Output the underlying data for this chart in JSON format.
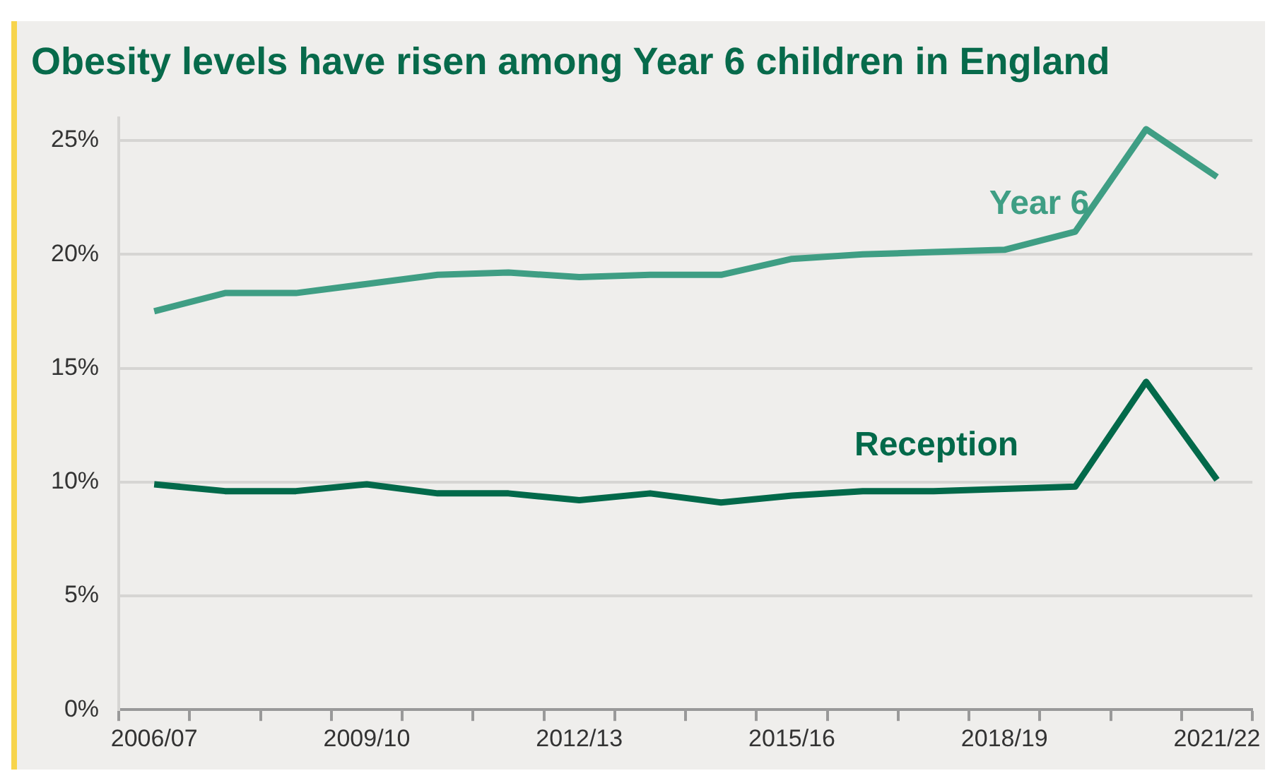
{
  "chart_data": {
    "type": "line",
    "title": "Obesity levels have risen among Year 6 children in England",
    "categories": [
      "2006/07",
      null,
      null,
      "2009/10",
      null,
      null,
      "2012/13",
      null,
      null,
      "2015/16",
      null,
      null,
      "2018/19",
      null,
      null,
      "2021/22"
    ],
    "series": [
      {
        "name": "Year 6",
        "color": "#3f9e84",
        "values": [
          17.5,
          18.3,
          18.3,
          18.7,
          19.1,
          19.2,
          19.0,
          19.1,
          19.1,
          19.8,
          20.0,
          20.1,
          20.2,
          21.0,
          25.5,
          23.4
        ]
      },
      {
        "name": "Reception",
        "color": "#02694a",
        "values": [
          9.9,
          9.6,
          9.6,
          9.9,
          9.5,
          9.5,
          9.2,
          9.5,
          9.1,
          9.4,
          9.6,
          9.6,
          9.7,
          9.8,
          14.4,
          10.1
        ]
      }
    ],
    "ylim": [
      0,
      26
    ],
    "yticks": [
      {
        "value": 0,
        "label": "0%"
      },
      {
        "value": 5,
        "label": "5%"
      },
      {
        "value": 10,
        "label": "10%"
      },
      {
        "value": 15,
        "label": "15%"
      },
      {
        "value": 20,
        "label": "20%"
      },
      {
        "value": 25,
        "label": "25%"
      }
    ],
    "grid": "y",
    "legend": false,
    "marker": "none",
    "line_style": "solid"
  }
}
